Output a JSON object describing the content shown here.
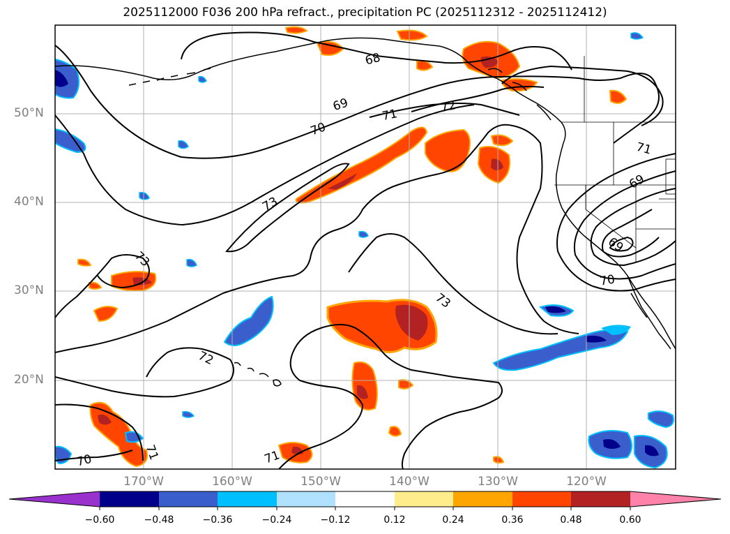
{
  "title": "2025112000 F036 200 hPa refract., precipitation PC (2025112312 - 2025112412)",
  "lat_labels": [
    "50°N",
    "40°N",
    "30°N",
    "20°N"
  ],
  "lon_labels": [
    "170°W",
    "160°W",
    "150°W",
    "140°W",
    "130°W",
    "120°W"
  ],
  "contour_labels": [
    "68",
    "69",
    "70",
    "71",
    "72",
    "73",
    "73",
    "73",
    "72",
    "71",
    "70",
    "71",
    "69",
    "69",
    "70"
  ],
  "colorbar": {
    "ticks": [
      "−0.60",
      "−0.48",
      "−0.36",
      "−0.24",
      "−0.12",
      "0.12",
      "0.24",
      "0.36",
      "0.48",
      "0.60"
    ],
    "colors": [
      "#9932cc",
      "#00008b",
      "#3a5fcd",
      "#00bfff",
      "#b0e2ff",
      "#ffffff",
      "#ffec8b",
      "#ffa500",
      "#ff4500",
      "#b22222",
      "#ff82ab",
      "#ff82ab"
    ]
  },
  "map_colors": {
    "coast": "#000000",
    "grid": "#b0b0b0",
    "contour": "#000000"
  }
}
